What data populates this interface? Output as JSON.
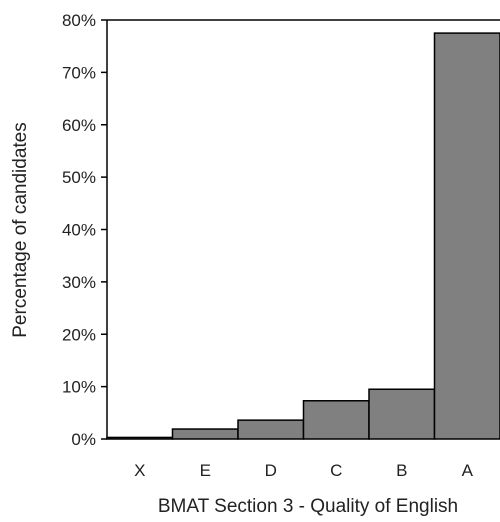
{
  "chart_data": {
    "type": "bar",
    "categories": [
      "X",
      "E",
      "D",
      "C",
      "B",
      "A"
    ],
    "values": [
      0.3,
      1.9,
      3.6,
      7.3,
      9.5,
      77.5
    ],
    "xlabel": "BMAT Section 3 - Quality of English",
    "ylabel": "Percentage of candidates",
    "ylim": [
      0,
      80
    ],
    "yticks": [
      "0%",
      "10%",
      "20%",
      "30%",
      "40%",
      "50%",
      "60%",
      "70%",
      "80%"
    ],
    "grid": false,
    "bar_color": "#808080",
    "bar_edge_color": "#000000"
  }
}
